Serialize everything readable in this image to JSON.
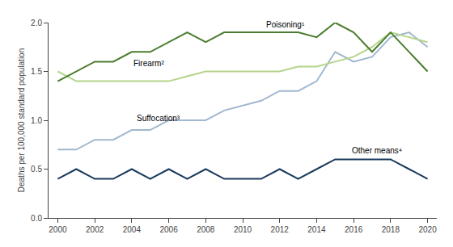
{
  "chart_data": {
    "type": "line",
    "ylabel": "Deaths per 100,000 standard population",
    "x": [
      2000,
      2001,
      2002,
      2003,
      2004,
      2005,
      2006,
      2007,
      2008,
      2009,
      2010,
      2011,
      2012,
      2013,
      2014,
      2015,
      2016,
      2017,
      2018,
      2019,
      2020
    ],
    "series": [
      {
        "name": "Other means⁴",
        "color": "#1a3a5c",
        "values": [
          0.4,
          0.5,
          0.4,
          0.4,
          0.5,
          0.4,
          0.5,
          0.4,
          0.5,
          0.4,
          0.4,
          0.4,
          0.5,
          0.4,
          0.5,
          0.6,
          0.6,
          0.6,
          0.6,
          0.5,
          0.4
        ]
      },
      {
        "name": "Suffocation³",
        "color": "#a0b8d0",
        "values": [
          0.7,
          0.7,
          0.8,
          0.8,
          0.9,
          0.9,
          1.0,
          1.0,
          1.0,
          1.1,
          1.15,
          1.2,
          1.3,
          1.3,
          1.4,
          1.7,
          1.6,
          1.65,
          1.85,
          1.9,
          1.75
        ]
      },
      {
        "name": "Firearm²",
        "color": "#b5d48a",
        "values": [
          1.5,
          1.4,
          1.4,
          1.4,
          1.4,
          1.4,
          1.4,
          1.45,
          1.5,
          1.5,
          1.5,
          1.5,
          1.5,
          1.55,
          1.55,
          1.6,
          1.65,
          1.75,
          1.9,
          1.85,
          1.8
        ]
      },
      {
        "name": "Poisoning¹",
        "color": "#4a7c2f",
        "values": [
          1.4,
          1.5,
          1.6,
          1.6,
          1.7,
          1.7,
          1.8,
          1.9,
          1.8,
          1.9,
          1.9,
          1.9,
          1.9,
          1.9,
          1.85,
          2.0,
          1.9,
          1.7,
          1.9,
          1.7,
          1.5
        ]
      }
    ],
    "annotations": [
      {
        "text": "Poisoning¹",
        "x": 2011.2,
        "y": 1.92
      },
      {
        "text": "Firearm²",
        "x": 2004.0,
        "y": 1.52
      },
      {
        "text": "Suffocation³",
        "x": 2004.2,
        "y": 0.96
      },
      {
        "text": "Other means⁴",
        "x": 2015.8,
        "y": 0.63
      }
    ],
    "xlim": [
      1999.5,
      2020.5
    ],
    "xticks": [
      2000,
      2002,
      2004,
      2006,
      2008,
      2010,
      2012,
      2014,
      2016,
      2018,
      2020
    ],
    "ylim": [
      0.0,
      2.0
    ],
    "yticks": [
      {
        "value": 0,
        "label": "0.0"
      },
      0.5,
      {
        "value": 1,
        "label": "1.0"
      },
      1.5,
      {
        "value": 2,
        "label": "2.0"
      }
    ],
    "grid": false
  }
}
